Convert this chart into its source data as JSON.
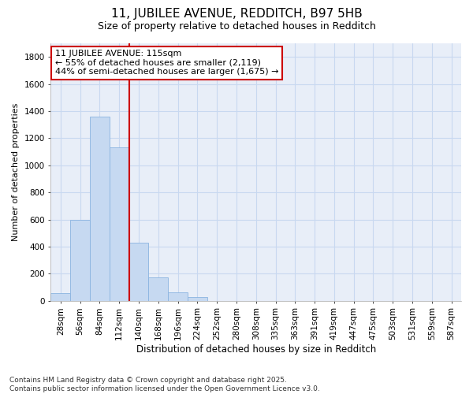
{
  "title1": "11, JUBILEE AVENUE, REDDITCH, B97 5HB",
  "title2": "Size of property relative to detached houses in Redditch",
  "xlabel": "Distribution of detached houses by size in Redditch",
  "ylabel": "Number of detached properties",
  "categories": [
    "28sqm",
    "56sqm",
    "84sqm",
    "112sqm",
    "140sqm",
    "168sqm",
    "196sqm",
    "224sqm",
    "252sqm",
    "280sqm",
    "308sqm",
    "335sqm",
    "363sqm",
    "391sqm",
    "419sqm",
    "447sqm",
    "475sqm",
    "503sqm",
    "531sqm",
    "559sqm",
    "587sqm"
  ],
  "values": [
    55,
    600,
    1360,
    1130,
    430,
    170,
    65,
    30,
    0,
    0,
    0,
    0,
    0,
    0,
    0,
    0,
    0,
    0,
    0,
    0,
    0
  ],
  "bar_color": "#c6d9f1",
  "bar_edge_color": "#8ab4e0",
  "vline_color": "#cc0000",
  "annotation_text": "11 JUBILEE AVENUE: 115sqm\n← 55% of detached houses are smaller (2,119)\n44% of semi-detached houses are larger (1,675) →",
  "annotation_box_color": "#ffffff",
  "annotation_box_edge": "#cc0000",
  "ylim": [
    0,
    1900
  ],
  "yticks": [
    0,
    200,
    400,
    600,
    800,
    1000,
    1200,
    1400,
    1600,
    1800
  ],
  "bg_color": "#ffffff",
  "plot_bg_color": "#e8eef8",
  "grid_color": "#c8d8f0",
  "footer": "Contains HM Land Registry data © Crown copyright and database right 2025.\nContains public sector information licensed under the Open Government Licence v3.0.",
  "title1_fontsize": 11,
  "title2_fontsize": 9,
  "xlabel_fontsize": 8.5,
  "ylabel_fontsize": 8,
  "tick_fontsize": 7.5,
  "annotation_fontsize": 8,
  "footer_fontsize": 6.5
}
